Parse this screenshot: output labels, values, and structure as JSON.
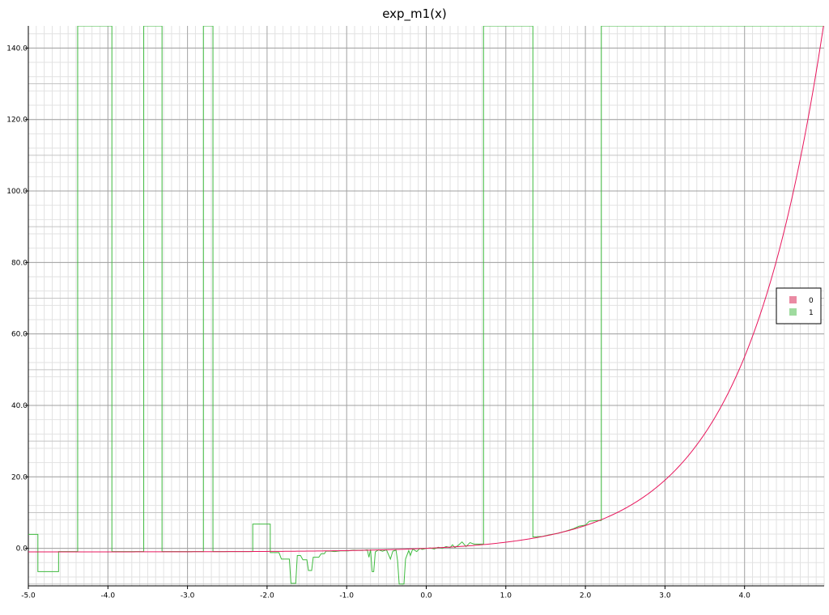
{
  "chart_data": {
    "type": "line",
    "title": "exp_m1(x)",
    "xlabel": "",
    "ylabel": "",
    "xlim": [
      -5.0,
      5.0
    ],
    "ylim": [
      -10.5,
      146.2
    ],
    "x_ticks": [
      -5.0,
      -4.0,
      -3.0,
      -2.0,
      -1.0,
      0.0,
      1.0,
      2.0,
      3.0,
      4.0
    ],
    "x_tick_labels": [
      "-5.0",
      "-4.0",
      "-3.0",
      "-2.0",
      "-1.0",
      "0.0",
      "1.0",
      "2.0",
      "3.0",
      "4.0"
    ],
    "y_ticks": [
      0,
      20,
      40,
      60,
      80,
      100,
      120,
      140
    ],
    "y_tick_labels": [
      "0.0",
      "20.0",
      "40.0",
      "60.0",
      "80.0",
      "100.0",
      "120.0",
      "140.0"
    ],
    "grid": true,
    "legend_position": "right",
    "series": [
      {
        "name": "0",
        "color": "#e8175d",
        "legend_color": "#ea8aa3",
        "function": "expm1",
        "x_range": [
          -5.0,
          5.0
        ]
      },
      {
        "name": "1",
        "color": "#3fba3f",
        "legend_color": "#9fdb9f",
        "points": [
          [
            -5.0,
            3.9
          ],
          [
            -4.88,
            3.9
          ],
          [
            -4.88,
            -6.5
          ],
          [
            -4.62,
            -6.5
          ],
          [
            -4.62,
            -0.9
          ],
          [
            -4.38,
            -0.9
          ],
          [
            -4.38,
            146.2
          ],
          [
            -3.95,
            146.2
          ],
          [
            -3.95,
            -0.9
          ],
          [
            -3.55,
            -0.9
          ],
          [
            -3.55,
            146.2
          ],
          [
            -3.32,
            146.2
          ],
          [
            -3.32,
            -0.9
          ],
          [
            -2.8,
            -0.9
          ],
          [
            -2.8,
            146.2
          ],
          [
            -2.68,
            146.2
          ],
          [
            -2.68,
            -0.9
          ],
          [
            -2.18,
            -0.9
          ],
          [
            -2.18,
            6.8
          ],
          [
            -1.96,
            6.8
          ],
          [
            -1.96,
            -1.2
          ],
          [
            -1.85,
            -1.2
          ],
          [
            -1.82,
            -3.0
          ],
          [
            -1.72,
            -3.0
          ],
          [
            -1.7,
            -9.8
          ],
          [
            -1.64,
            -9.8
          ],
          [
            -1.62,
            -2.0
          ],
          [
            -1.58,
            -2.0
          ],
          [
            -1.55,
            -3.2
          ],
          [
            -1.5,
            -3.2
          ],
          [
            -1.48,
            -6.2
          ],
          [
            -1.44,
            -6.2
          ],
          [
            -1.42,
            -2.5
          ],
          [
            -1.35,
            -2.5
          ],
          [
            -1.32,
            -1.5
          ],
          [
            -1.28,
            -1.5
          ],
          [
            -1.26,
            -0.8
          ],
          [
            -1.2,
            -0.8
          ],
          [
            -1.15,
            -0.9
          ],
          [
            -1.08,
            -0.7
          ],
          [
            -0.98,
            -0.7
          ],
          [
            -0.92,
            -0.5
          ],
          [
            -0.8,
            -0.6
          ],
          [
            -0.74,
            -0.4
          ],
          [
            -0.72,
            -2.5
          ],
          [
            -0.7,
            -0.3
          ],
          [
            -0.68,
            -6.5
          ],
          [
            -0.66,
            -6.5
          ],
          [
            -0.64,
            -1.0
          ],
          [
            -0.6,
            -0.4
          ],
          [
            -0.55,
            -0.8
          ],
          [
            -0.5,
            -0.4
          ],
          [
            -0.45,
            -3.0
          ],
          [
            -0.42,
            -0.8
          ],
          [
            -0.38,
            -0.5
          ],
          [
            -0.36,
            -3.5
          ],
          [
            -0.34,
            -10.0
          ],
          [
            -0.28,
            -10.0
          ],
          [
            -0.26,
            -3.0
          ],
          [
            -0.22,
            -0.6
          ],
          [
            -0.2,
            -2.0
          ],
          [
            -0.17,
            -0.2
          ],
          [
            -0.12,
            -0.9
          ],
          [
            -0.08,
            0.0
          ],
          [
            -0.05,
            -0.3
          ],
          [
            0.0,
            0.0
          ],
          [
            0.05,
            0.1
          ],
          [
            0.1,
            -0.2
          ],
          [
            0.15,
            0.3
          ],
          [
            0.2,
            0.0
          ],
          [
            0.25,
            0.5
          ],
          [
            0.3,
            0.2
          ],
          [
            0.33,
            1.0
          ],
          [
            0.36,
            0.2
          ],
          [
            0.4,
            0.8
          ],
          [
            0.45,
            1.8
          ],
          [
            0.5,
            0.5
          ],
          [
            0.55,
            1.6
          ],
          [
            0.6,
            1.2
          ],
          [
            0.72,
            1.2
          ],
          [
            0.72,
            146.2
          ],
          [
            1.34,
            146.2
          ],
          [
            1.34,
            3.2
          ],
          [
            1.45,
            3.3
          ],
          [
            1.55,
            3.8
          ],
          [
            1.65,
            4.2
          ],
          [
            1.75,
            4.8
          ],
          [
            1.85,
            5.5
          ],
          [
            1.92,
            6.2
          ],
          [
            2.0,
            6.5
          ],
          [
            2.05,
            7.6
          ],
          [
            2.15,
            7.8
          ],
          [
            2.2,
            7.8
          ],
          [
            2.2,
            146.2
          ],
          [
            5.0,
            146.2
          ]
        ]
      }
    ]
  }
}
